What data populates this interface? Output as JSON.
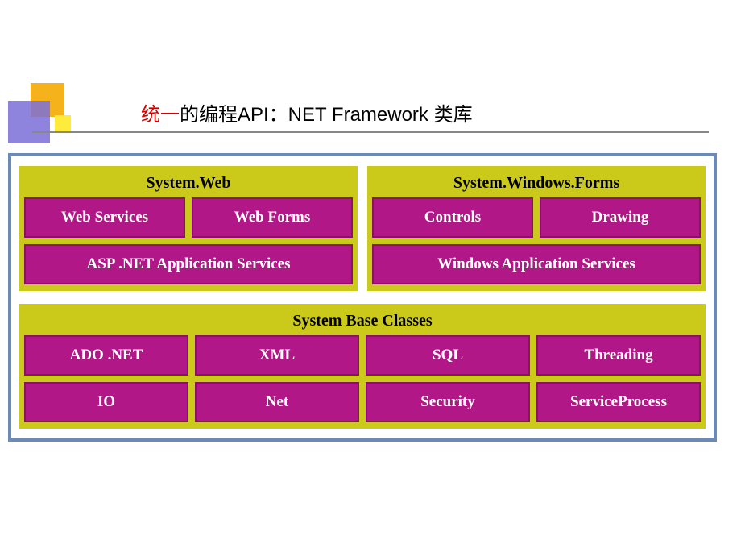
{
  "title": {
    "red": "统一",
    "black": "的编程API：NET Framework 类库"
  },
  "colors": {
    "section_bg": "#cbca1a",
    "cell_bg": "#b21787",
    "cell_border": "#8b1068",
    "cell_text": "#ffffff",
    "frame_border": "#6a8bb7",
    "title_red": "#d40000"
  },
  "diagram": {
    "sections": [
      {
        "id": "system-web",
        "header": "System.Web",
        "layout": "half",
        "cells": [
          {
            "label": "Web Services",
            "span": 1
          },
          {
            "label": "Web Forms",
            "span": 1
          },
          {
            "label": "ASP .NET Application Services",
            "span": 2
          }
        ]
      },
      {
        "id": "system-windows-forms",
        "header": "System.Windows.Forms",
        "layout": "half",
        "cells": [
          {
            "label": "Controls",
            "span": 1
          },
          {
            "label": "Drawing",
            "span": 1
          },
          {
            "label": "Windows Application Services",
            "span": 2
          }
        ]
      },
      {
        "id": "system-base-classes",
        "header": "System Base Classes",
        "layout": "full",
        "cells": [
          {
            "label": "ADO .NET",
            "span": 1
          },
          {
            "label": "XML",
            "span": 1
          },
          {
            "label": "SQL",
            "span": 1
          },
          {
            "label": "Threading",
            "span": 1
          },
          {
            "label": "IO",
            "span": 1
          },
          {
            "label": "Net",
            "span": 1
          },
          {
            "label": "Security",
            "span": 1
          },
          {
            "label": "ServiceProcess",
            "span": 1
          }
        ]
      }
    ]
  }
}
